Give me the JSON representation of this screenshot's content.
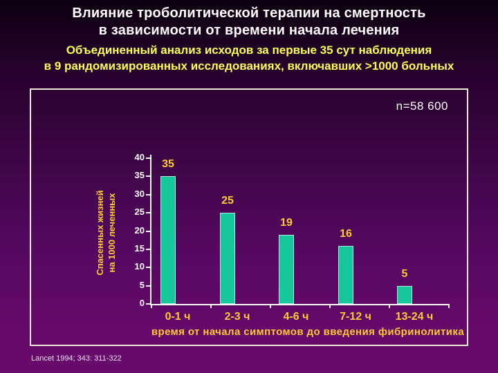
{
  "header": {
    "title_line1": "Влияние троболитической терапии на смертность",
    "title_line2": "в зависимости от времени начала лечения",
    "subtitle_line1": "Объединенный анализ исходов за первые 35 сут наблюдения",
    "subtitle_line2": "в 9 рандомизированных исследованиях, включавших >1000 больных"
  },
  "chart_data": {
    "type": "bar",
    "annotation": "n=58 600",
    "categories": [
      "0-1 ч",
      "2-3 ч",
      "4-6 ч",
      "7-12 ч",
      "13-24 ч"
    ],
    "values": [
      35,
      25,
      19,
      16,
      5
    ],
    "title": "",
    "xlabel": "время от начала симптомов до введения фибринолитика",
    "ylabel_line1": "Спасенных  жизней",
    "ylabel_line2": "на 1000 леченных",
    "ylim": [
      0,
      40
    ],
    "yticks": [
      0,
      5,
      10,
      15,
      20,
      25,
      30,
      35,
      40
    ],
    "grid": false,
    "legend": null,
    "bar_color": "#16c79b",
    "value_label_color": "#ffcc33",
    "axis_color": "#ffffff"
  },
  "footer": {
    "citation": "Lancet 1994; 343: 311-322"
  },
  "colors": {
    "background_top": "#0c0010",
    "background_bottom": "#690a6d",
    "title_text": "#ffffff",
    "subtitle_text": "#ffff52",
    "gold_text": "#ffcc33",
    "panel_border": "#efe9d8"
  }
}
